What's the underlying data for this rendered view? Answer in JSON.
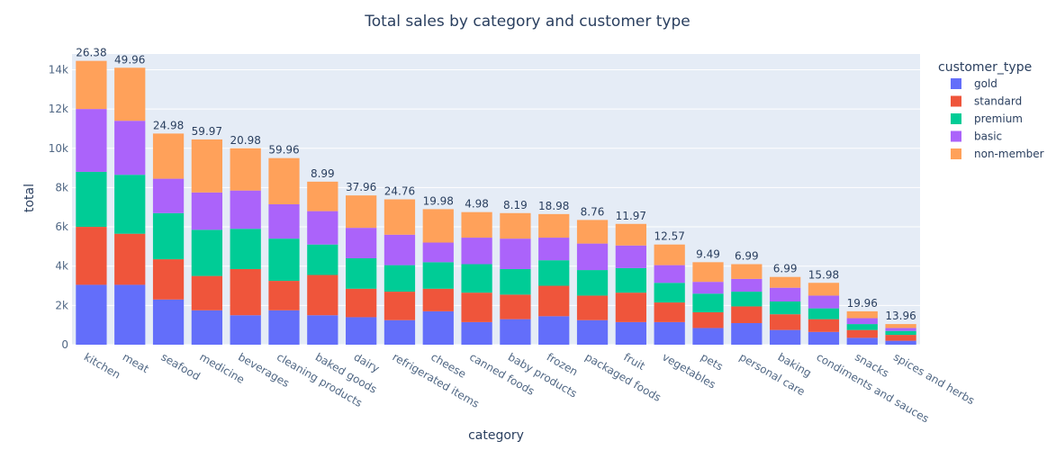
{
  "chart_data": {
    "type": "bar",
    "stacked": true,
    "title": "Total sales by category and customer type",
    "xlabel": "category",
    "ylabel": "total",
    "ylim": [
      0,
      14800
    ],
    "yticks": [
      0,
      2000,
      4000,
      6000,
      8000,
      10000,
      12000,
      14000
    ],
    "ytick_labels": [
      "0",
      "2k",
      "4k",
      "6k",
      "8k",
      "10k",
      "12k",
      "14k"
    ],
    "grid": true,
    "legend_title": "customer_type",
    "legend_position": "right",
    "categories": [
      "kitchen",
      "meat",
      "seafood",
      "medicine",
      "beverages",
      "cleaning products",
      "baked goods",
      "dairy",
      "refrigerated items",
      "cheese",
      "canned foods",
      "baby products",
      "frozen",
      "packaged foods",
      "fruit",
      "vegetables",
      "pets",
      "personal care",
      "baking",
      "condiments and sauces",
      "snacks",
      "spices and herbs"
    ],
    "series": [
      {
        "name": "gold",
        "color": "#636efa",
        "values": [
          3050,
          3050,
          2300,
          1750,
          1500,
          1750,
          1500,
          1400,
          1250,
          1700,
          1150,
          1300,
          1450,
          1250,
          1150,
          1150,
          850,
          1100,
          750,
          650,
          350,
          200
        ]
      },
      {
        "name": "standard",
        "color": "#EF553B",
        "values": [
          2950,
          2600,
          2050,
          1750,
          2350,
          1500,
          2050,
          1450,
          1450,
          1150,
          1500,
          1250,
          1550,
          1250,
          1500,
          1000,
          800,
          850,
          800,
          650,
          400,
          300
        ]
      },
      {
        "name": "premium",
        "color": "#00cc96",
        "values": [
          2800,
          3000,
          2350,
          2350,
          2050,
          2150,
          1550,
          1550,
          1350,
          1350,
          1450,
          1300,
          1300,
          1300,
          1250,
          1000,
          950,
          750,
          650,
          550,
          300,
          200
        ]
      },
      {
        "name": "basic",
        "color": "#ab63fa",
        "values": [
          3200,
          2750,
          1750,
          1900,
          1950,
          1750,
          1700,
          1550,
          1550,
          1000,
          1350,
          1550,
          1150,
          1350,
          1150,
          900,
          600,
          650,
          700,
          650,
          300,
          150
        ]
      },
      {
        "name": "non-member",
        "color": "#FFA15A",
        "values": [
          2450,
          2700,
          2300,
          2700,
          2150,
          2350,
          1500,
          1650,
          1800,
          1700,
          1300,
          1300,
          1200,
          1200,
          1100,
          1050,
          1000,
          750,
          550,
          650,
          350,
          200
        ]
      }
    ],
    "bar_top_labels": [
      "26.38",
      "49.96",
      "24.98",
      "59.97",
      "20.98",
      "59.96",
      "8.99",
      "37.96",
      "24.76",
      "19.98",
      "4.98",
      "8.19",
      "18.98",
      "8.76",
      "11.97",
      "12.57",
      "9.49",
      "6.99",
      "6.99",
      "15.98",
      "19.96",
      "13.96"
    ]
  }
}
